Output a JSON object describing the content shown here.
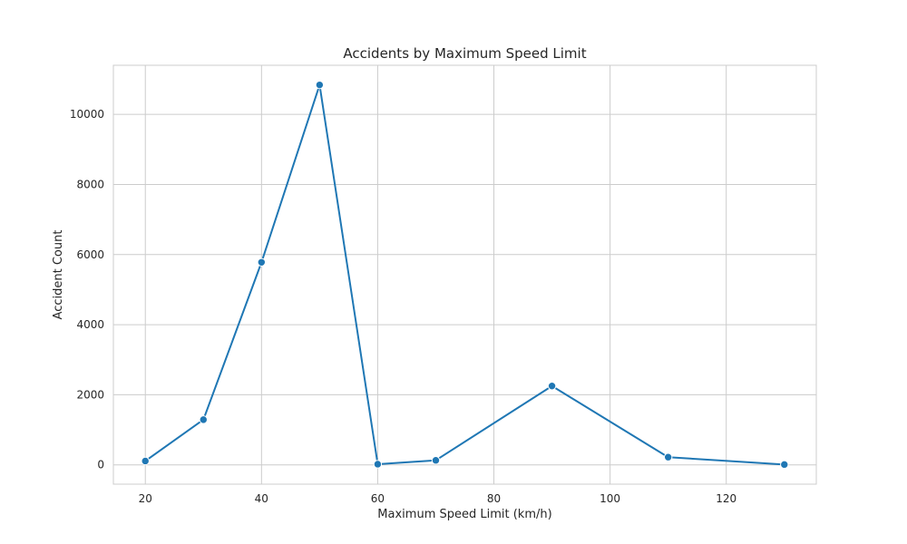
{
  "chart_data": {
    "type": "line",
    "title": "Accidents by Maximum Speed Limit",
    "xlabel": "Maximum Speed Limit (km/h)",
    "ylabel": "Accident Count",
    "xlim": [
      14.5,
      135.5
    ],
    "ylim": [
      -550,
      11400
    ],
    "xticks": [
      20,
      40,
      60,
      80,
      100,
      120
    ],
    "yticks": [
      0,
      2000,
      4000,
      6000,
      8000,
      10000
    ],
    "grid": true,
    "series": [
      {
        "color": "#1f77b4",
        "marker": "circle",
        "points": [
          {
            "x": 20,
            "y": 110
          },
          {
            "x": 30,
            "y": 1290
          },
          {
            "x": 40,
            "y": 5780
          },
          {
            "x": 50,
            "y": 10840
          },
          {
            "x": 60,
            "y": 20
          },
          {
            "x": 70,
            "y": 130
          },
          {
            "x": 90,
            "y": 2250
          },
          {
            "x": 110,
            "y": 220
          },
          {
            "x": 130,
            "y": 10
          }
        ]
      }
    ],
    "colors": {
      "grid": "#cccccc",
      "frame": "#cccccc",
      "background": "#ffffff",
      "text": "#262626"
    }
  }
}
